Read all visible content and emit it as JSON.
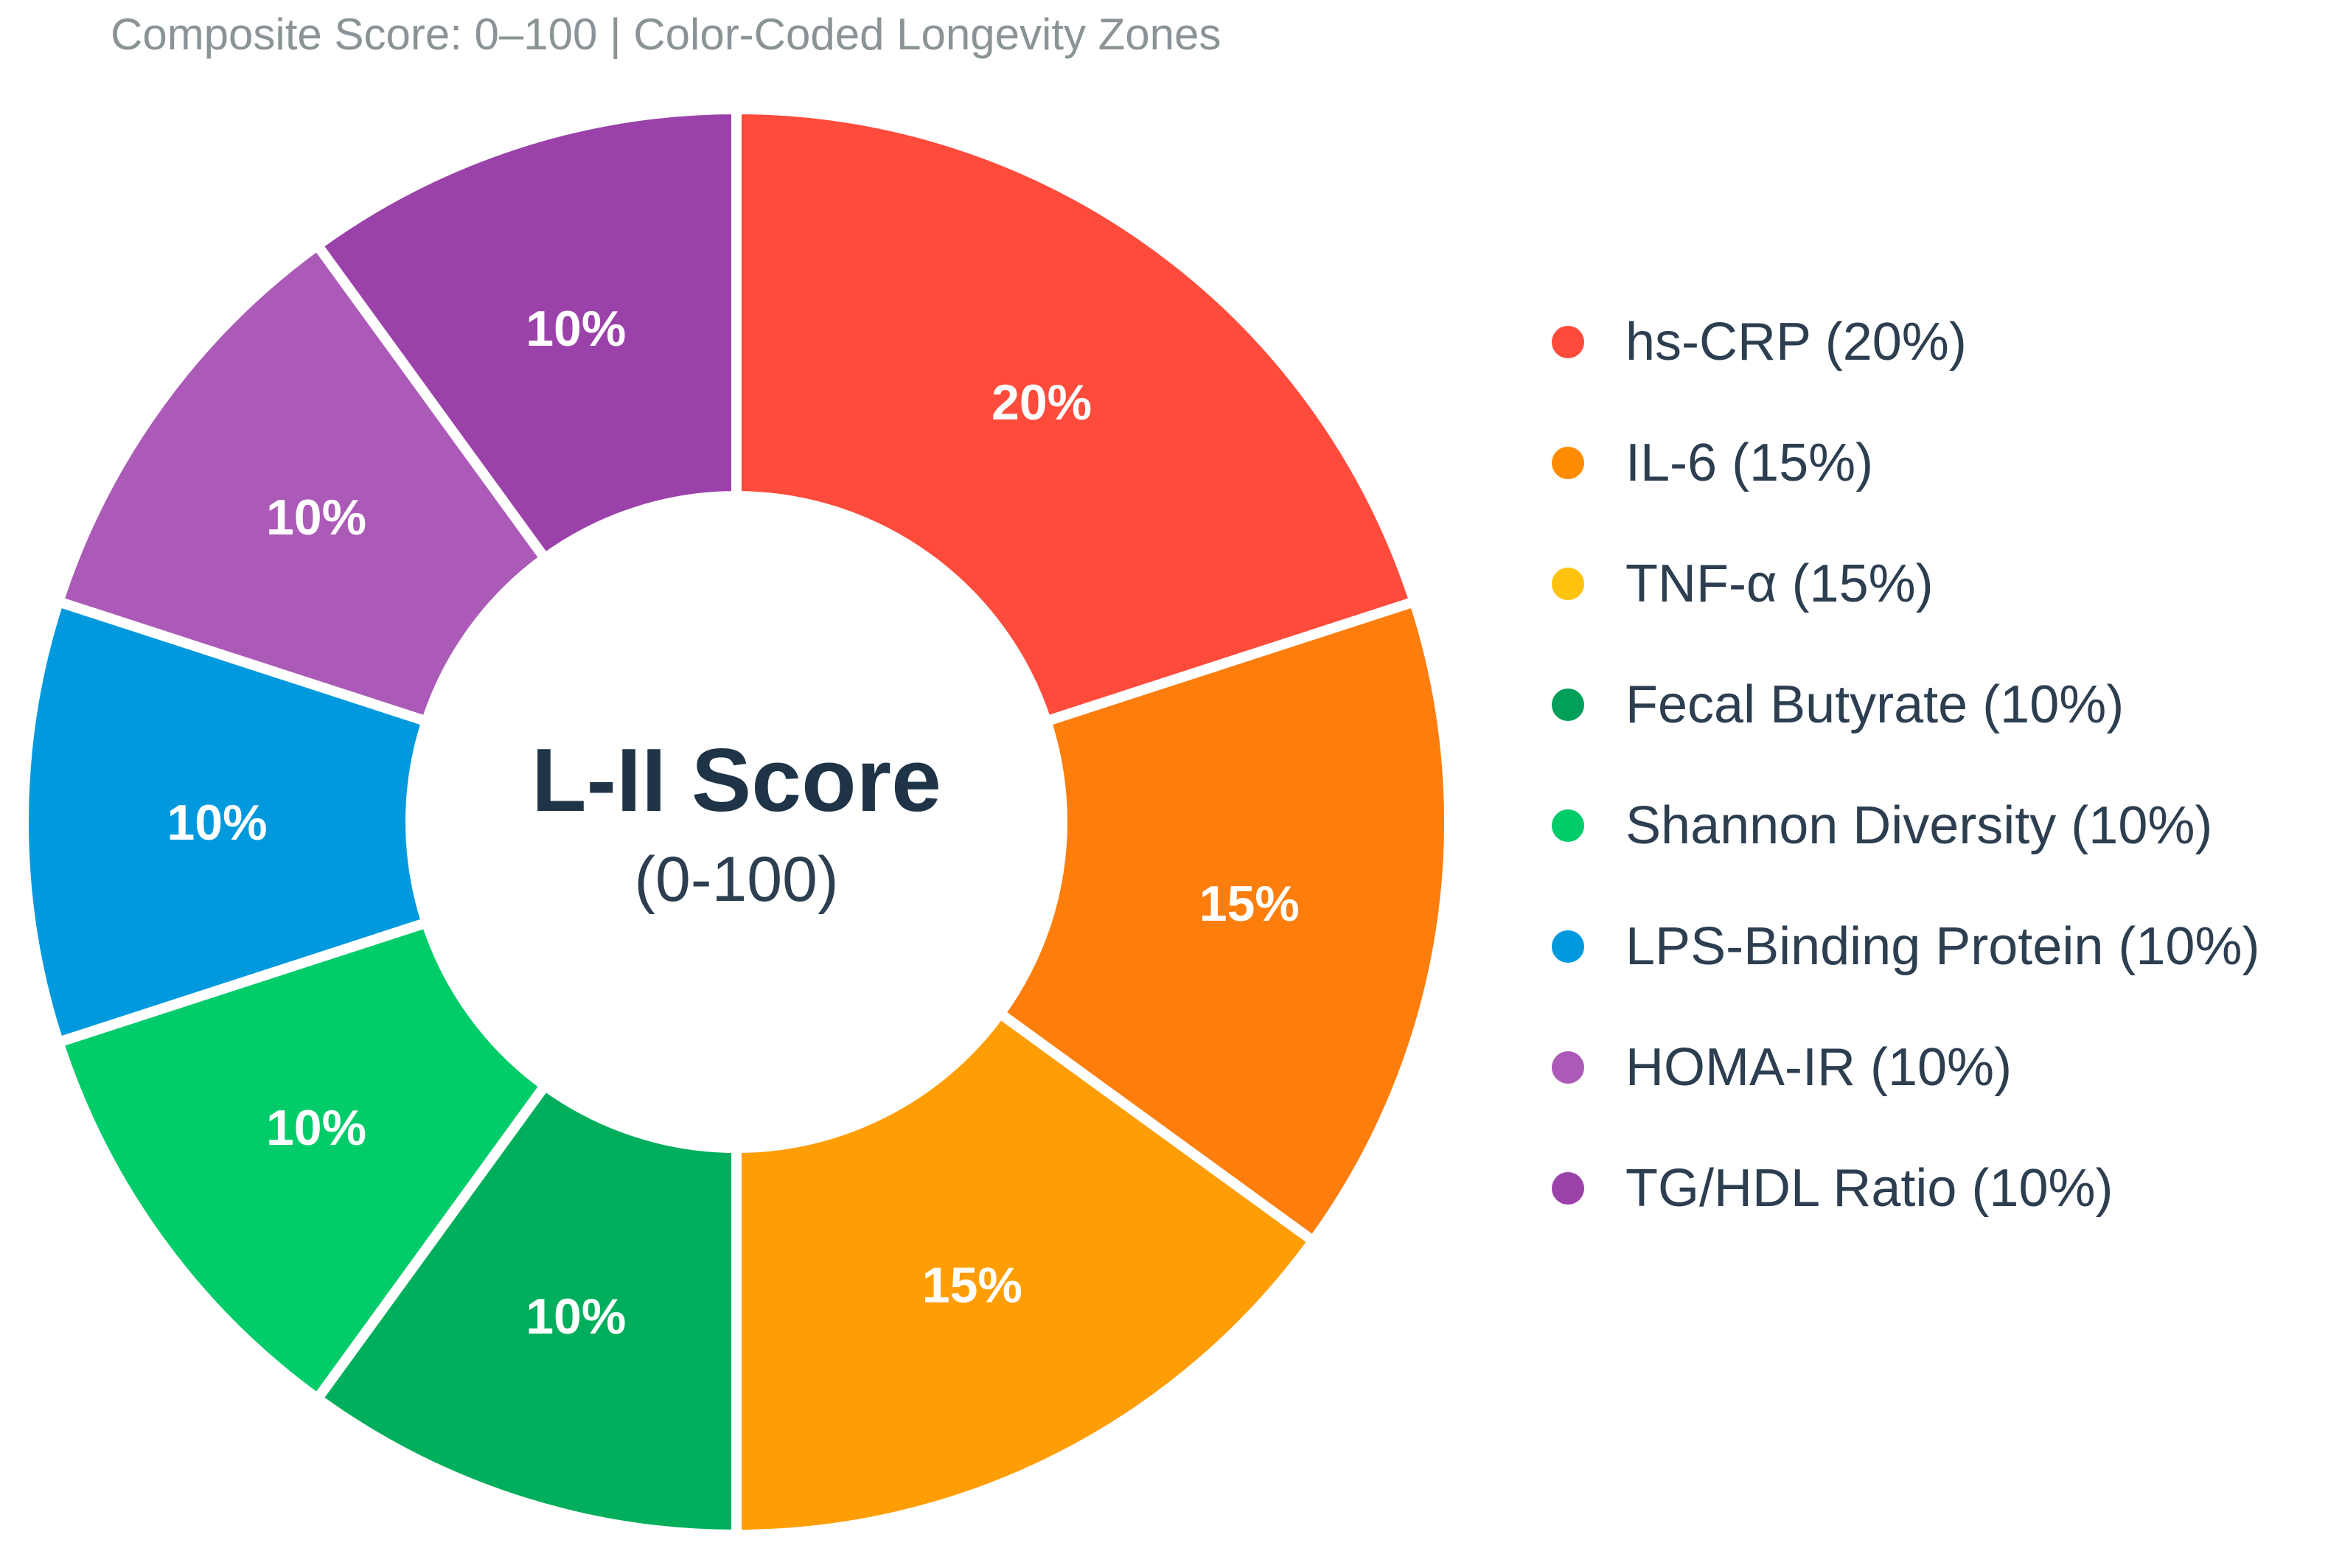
{
  "subtitle": "Composite Score: 0–100 | Color-Coded Longevity Zones",
  "chart_data": {
    "type": "pie",
    "donut": true,
    "center_title": "L-II Score",
    "center_subtitle": "(0-100)",
    "legend_position": "right",
    "slices": [
      {
        "label": "hs-CRP",
        "legend": "hs-CRP (20%)",
        "value": 20,
        "data_label": "20%",
        "color": "#ff4b3b",
        "legend_color": "#ff4b3b"
      },
      {
        "label": "IL-6",
        "legend": "IL-6 (15%)",
        "value": 15,
        "data_label": "15%",
        "color": "#fd7e0d",
        "legend_color": "#ff8c00"
      },
      {
        "label": "TNF-α",
        "legend": "TNF-α (15%)",
        "value": 15,
        "data_label": "15%",
        "color": "#ff9e04",
        "legend_color": "#ffc20e"
      },
      {
        "label": "Fecal Butyrate",
        "legend": "Fecal Butyrate (10%)",
        "value": 10,
        "data_label": "10%",
        "color": "#00ae5c",
        "legend_color": "#00a05a"
      },
      {
        "label": "Shannon Diversity",
        "legend": "Shannon Diversity (10%)",
        "value": 10,
        "data_label": "10%",
        "color": "#00cc6a",
        "legend_color": "#00cc6a"
      },
      {
        "label": "LPS-Binding Protein",
        "legend": "LPS-Binding Protein (10%)",
        "value": 10,
        "data_label": "10%",
        "color": "#0099dd",
        "legend_color": "#0099dd"
      },
      {
        "label": "HOMA-IR",
        "legend": "HOMA-IR (10%)",
        "value": 10,
        "data_label": "10%",
        "color": "#ab5bb7",
        "legend_color": "#ab5bb7"
      },
      {
        "label": "TG/HDL Ratio",
        "legend": "TG/HDL Ratio (10%)",
        "value": 10,
        "data_label": "10%",
        "color": "#9b42aa",
        "legend_color": "#9b42aa"
      }
    ]
  }
}
